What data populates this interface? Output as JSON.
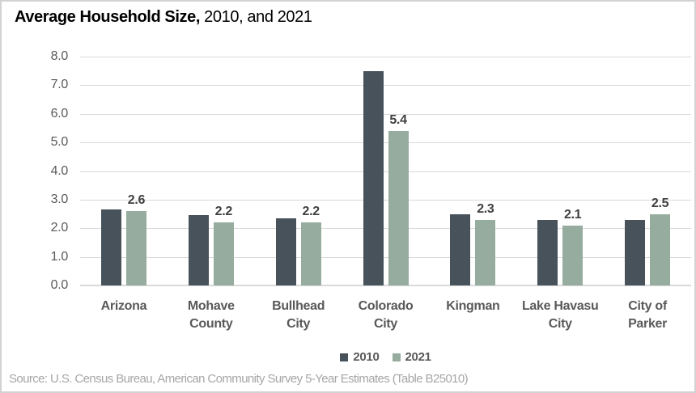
{
  "title": {
    "bold_part": "Average Household Size,",
    "regular_part": " 2010, and 2021"
  },
  "chart_data": {
    "type": "bar",
    "title": "Average Household Size, 2010, and 2021",
    "categories": [
      "Arizona",
      "Mohave County",
      "Bullhead City",
      "Colorado City",
      "Kingman",
      "Lake Havasu City",
      "City of Parker"
    ],
    "tick_labels": [
      "Arizona",
      "Mohave\nCounty",
      "Bullhead\nCity",
      "Colorado\nCity",
      "Kingman",
      "Lake Havasu\nCity",
      "City of\nParker"
    ],
    "series": [
      {
        "name": "2010",
        "color": "#47525A",
        "values": [
          2.65,
          2.45,
          2.35,
          7.5,
          2.5,
          2.3,
          2.3
        ]
      },
      {
        "name": "2021",
        "color": "#96AC9E",
        "values": [
          2.6,
          2.2,
          2.2,
          5.4,
          2.3,
          2.1,
          2.5
        ]
      }
    ],
    "value_labels_2021": [
      "2.6",
      "2.2",
      "2.2",
      "5.4",
      "2.3",
      "2.1",
      "2.5"
    ],
    "yticks": [
      "8.0",
      "7.0",
      "6.0",
      "5.0",
      "4.0",
      "3.0",
      "2.0",
      "1.0",
      "0.0"
    ],
    "ylim": [
      0,
      8
    ],
    "grid": true,
    "legend_position": "bottom",
    "xlabel": "",
    "ylabel": ""
  },
  "source_note": "Source: U.S. Census Bureau, American Community Survey 5-Year Estimates (Table B25010)",
  "colors": {
    "series_2010": "#47525A",
    "series_2021": "#96AC9E",
    "gridline": "#D9D9D9",
    "axis_text": "#595959",
    "data_label_text": "#3F3F3F",
    "source_text": "#A6A6A6",
    "border": "#D2D2D2"
  }
}
